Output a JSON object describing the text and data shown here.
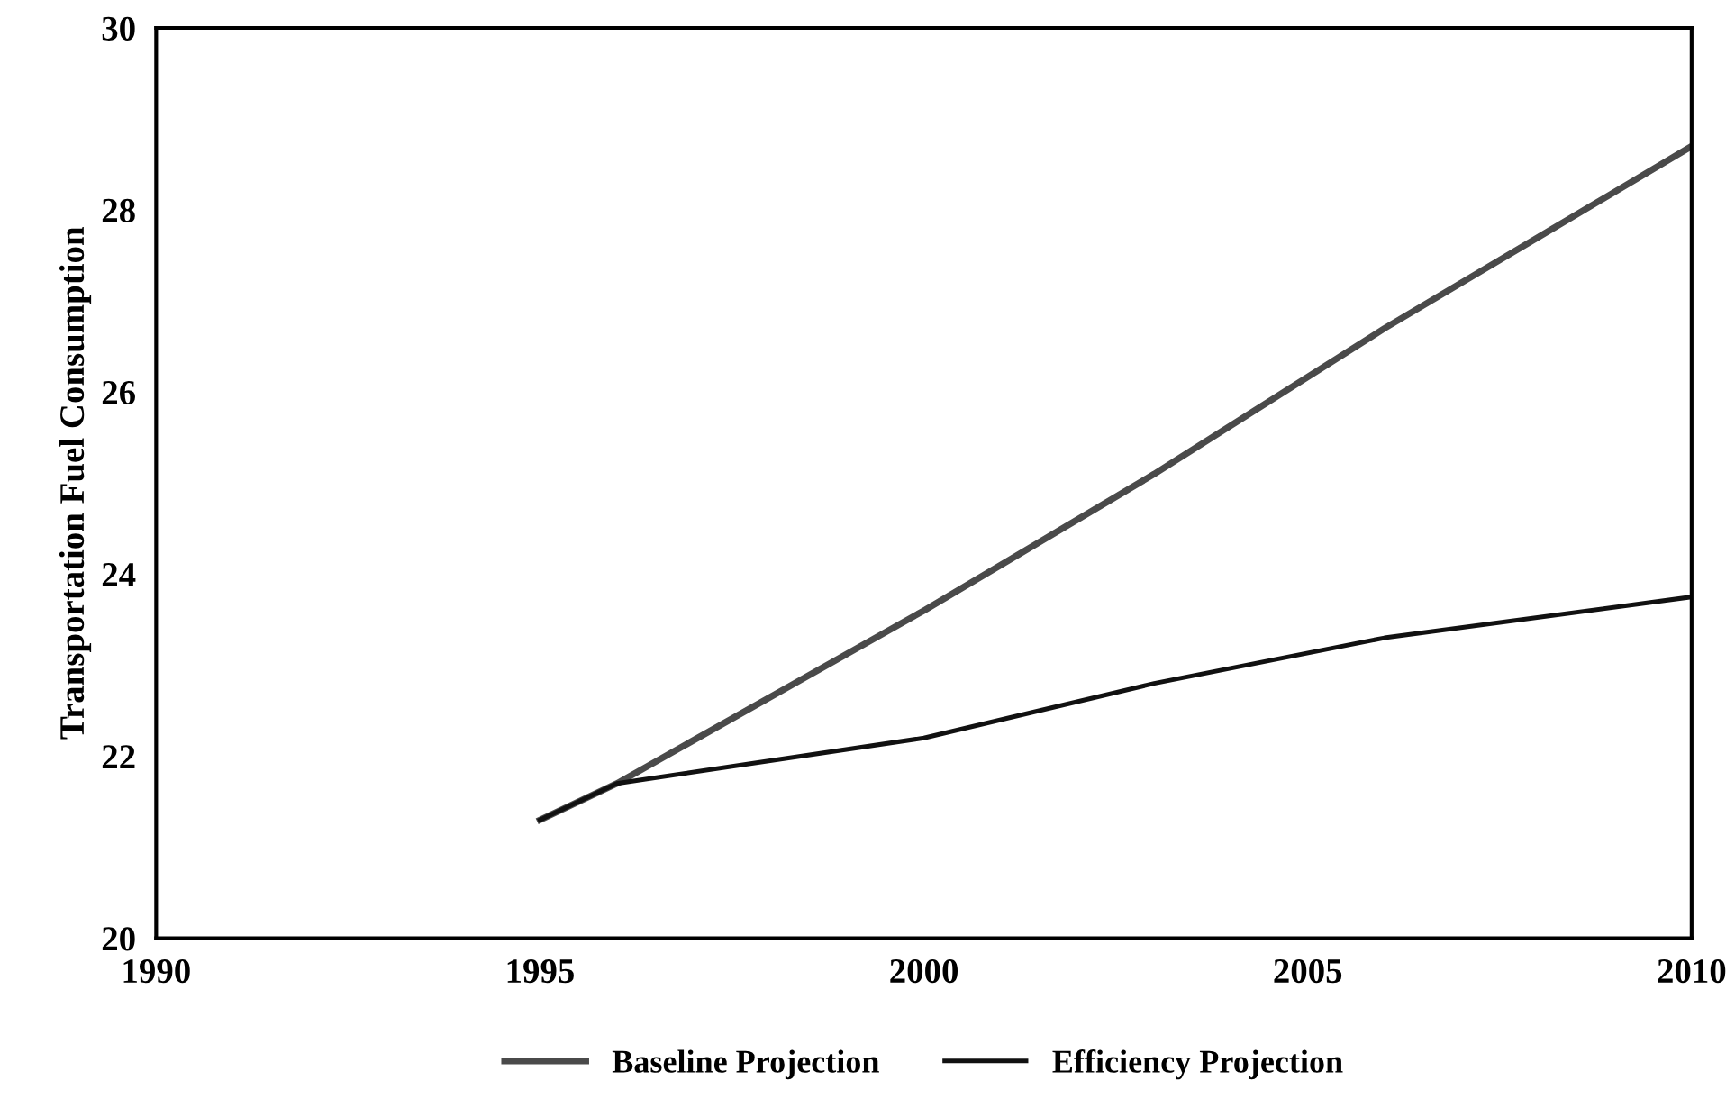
{
  "chart_data": {
    "type": "line",
    "ylabel": "Transportation Fuel Consumption",
    "series": [
      {
        "name": "Baseline Projection",
        "color": "#4a4a4a",
        "x": [
          1995,
          1996,
          2000,
          2003,
          2006,
          2010
        ],
        "values": [
          21.3,
          21.7,
          23.6,
          25.1,
          26.7,
          28.7
        ]
      },
      {
        "name": "Efficiency Projection",
        "color": "#111111",
        "x": [
          1995,
          1996,
          2000,
          2003,
          2006,
          2010
        ],
        "values": [
          21.3,
          21.7,
          22.2,
          22.8,
          23.3,
          23.75
        ]
      }
    ],
    "xlim": [
      1990,
      2010
    ],
    "xticks": [
      1990,
      1995,
      2000,
      2005,
      2010
    ],
    "ylim": [
      20,
      30
    ],
    "yticks": [
      20,
      22,
      24,
      26,
      28,
      30
    ],
    "grid": false,
    "legend": "bottom",
    "marker": "none",
    "line_style": "solid"
  }
}
